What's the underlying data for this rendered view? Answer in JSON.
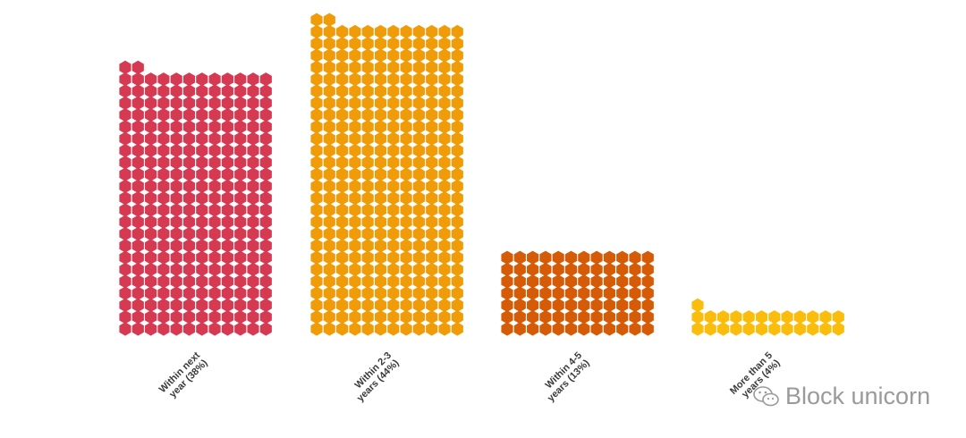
{
  "chart_data": {
    "type": "waffle",
    "unit": "hexagon",
    "columns_per_bar": 12,
    "categories": [
      {
        "lines": [
          "Within next",
          "year (38%)"
        ],
        "percent": 38,
        "color": "#d63a52",
        "units": 266
      },
      {
        "lines": [
          "Within 2-3",
          "years (44%)"
        ],
        "percent": 44,
        "color": "#f09c08",
        "units": 314
      },
      {
        "lines": [
          "Within 4-5",
          "years (13%)"
        ],
        "percent": 13,
        "color": "#d55b06",
        "units": 84
      },
      {
        "lines": [
          "More than 5",
          "years (4%)"
        ],
        "percent": 4,
        "color": "#fbbd0b",
        "units": 25
      }
    ]
  },
  "watermark": {
    "text": "Block unicorn",
    "icon": "wechat-logo-icon"
  }
}
